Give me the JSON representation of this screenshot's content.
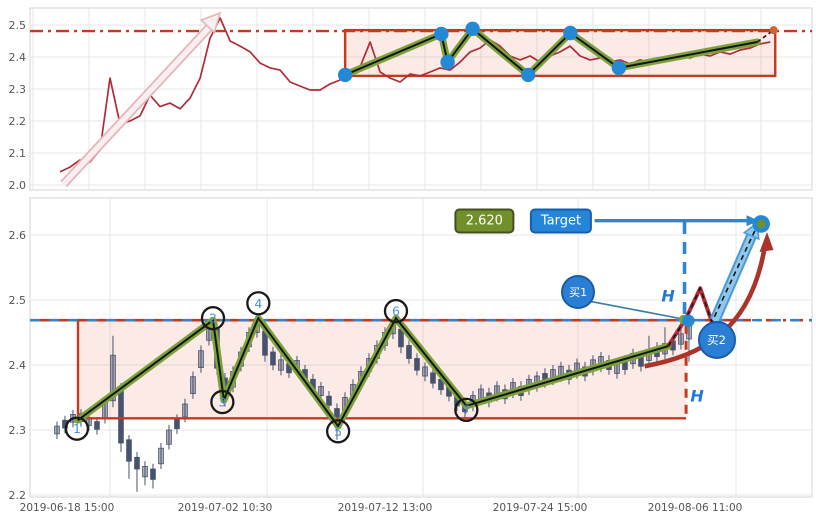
{
  "colors": {
    "grid": "#e7e7e7",
    "panel_border": "#d5d5d5",
    "axis_text": "#555555",
    "price_line": "#b02c38",
    "red": "#c5391f",
    "box_fill": "rgba(222,90,57,0.13)",
    "zigzag_green": "#7ba23c",
    "zigzag_black": "#161616",
    "pivot_blue": "#2389d5",
    "candle": "#47536e",
    "candle_up_fill": "rgba(71,83,110,0.45)",
    "orange_dot": "#d2622f",
    "arrow_pink_edge": "#e4b6ba",
    "arrow_pink_fill": "#f9eff0",
    "curve_red": "#a8342a",
    "lightblue_fill": "#8fc7ea",
    "lightblue_edge": "#4a9bd5",
    "blue_line": "#2f86d0",
    "steel_pointer": "#3a7ca8",
    "circle_stroke": "#1a1a1a",
    "circle_number": "#4a93d8",
    "olive_inner": "#70902c"
  },
  "chart_data": [
    {
      "type": "line",
      "panel": "top",
      "y_ticks": [
        {
          "p": 2.5,
          "label": "2.5"
        },
        {
          "p": 2.4,
          "label": "2.4"
        },
        {
          "p": 2.3,
          "label": "2.3"
        },
        {
          "p": 2.2,
          "label": "2.2"
        },
        {
          "p": 2.1,
          "label": "2.1"
        },
        {
          "p": 2.0,
          "label": "2.0"
        }
      ],
      "grid_t": [
        0.38,
        7.54,
        14.7,
        21.86,
        29.02,
        36.18,
        43.34,
        50.5,
        57.66,
        64.82,
        71.98,
        79.14,
        86.3,
        93.46
      ],
      "hline_p": 2.481,
      "box": {
        "t1": 40.3,
        "t2": 95.3,
        "p_top": 2.484,
        "p_bottom": 2.341
      },
      "trend_arrow": {
        "from": [
          4.3,
          2.003
        ],
        "to": [
          24.2,
          2.53
        ]
      },
      "line": {
        "t_start": 3.84,
        "t_step": 1.279,
        "prices": [
          2.041,
          2.056,
          2.078,
          2.072,
          2.109,
          2.334,
          2.191,
          2.2,
          2.216,
          2.281,
          2.245,
          2.256,
          2.238,
          2.272,
          2.334,
          2.459,
          2.522,
          2.45,
          2.434,
          2.416,
          2.381,
          2.366,
          2.359,
          2.322,
          2.309,
          2.297,
          2.297,
          2.316,
          2.328,
          2.353,
          2.369,
          2.447,
          2.353,
          2.334,
          2.322,
          2.347,
          2.341,
          2.353,
          2.366,
          2.359,
          2.384,
          2.416,
          2.428,
          2.453,
          2.434,
          2.403,
          2.391,
          2.403,
          2.384,
          2.403,
          2.416,
          2.434,
          2.403,
          2.391,
          2.397,
          2.384,
          2.391,
          2.378,
          2.391,
          2.384,
          2.397,
          2.391,
          2.403,
          2.397,
          2.409,
          2.403,
          2.416,
          2.409,
          2.422,
          2.428,
          2.441,
          2.447
        ]
      },
      "zigzag": [
        [
          40.3,
          2.344
        ],
        [
          52.6,
          2.472
        ],
        [
          53.4,
          2.384
        ],
        [
          56.6,
          2.488
        ],
        [
          63.7,
          2.344
        ],
        [
          69.1,
          2.475
        ],
        [
          75.3,
          2.366
        ],
        [
          93.0,
          2.447
        ]
      ],
      "zigzag_dash": [
        [
          93.0,
          2.447
        ],
        [
          95.1,
          2.484
        ]
      ],
      "end_dot": [
        95.1,
        2.484
      ]
    },
    {
      "type": "candlestick",
      "panel": "bottom",
      "y_ticks": [
        {
          "p": 2.6,
          "label": "2.6"
        },
        {
          "p": 2.5,
          "label": "2.5"
        },
        {
          "p": 2.4,
          "label": "2.4"
        },
        {
          "p": 2.3,
          "label": "2.3"
        },
        {
          "p": 2.2,
          "label": "2.2"
        }
      ],
      "grid_t": [
        10.23,
        30.31,
        50.26,
        70.08,
        90.28
      ],
      "x_ticks": [
        {
          "t": 4.73,
          "label": "2019-06-18 15:00"
        },
        {
          "t": 24.94,
          "label": "2019-07-02 10:30"
        },
        {
          "t": 45.4,
          "label": "2019-07-12 13:00"
        },
        {
          "t": 65.22,
          "label": "2019-07-24 15:00"
        },
        {
          "t": 85.04,
          "label": "2019-08-06 11:00"
        }
      ],
      "hline_p": 2.469,
      "box": {
        "t1": 6.14,
        "t2": 83.9,
        "p_top": 2.469,
        "p_bottom": 2.318
      },
      "candles": {
        "t_start": 3.45,
        "t_step": 1.023,
        "ohlc": [
          [
            2.294,
            2.313,
            2.286,
            2.306
          ],
          [
            2.315,
            2.322,
            2.295,
            2.303
          ],
          [
            2.312,
            2.331,
            2.304,
            2.324
          ],
          [
            2.325,
            2.332,
            2.305,
            2.313
          ],
          [
            2.307,
            2.326,
            2.299,
            2.319
          ],
          [
            2.313,
            2.32,
            2.293,
            2.301
          ],
          [
            2.318,
            2.352,
            2.31,
            2.342
          ],
          [
            2.345,
            2.445,
            2.335,
            2.415
          ],
          [
            2.36,
            2.372,
            2.266,
            2.28
          ],
          [
            2.285,
            2.292,
            2.225,
            2.252
          ],
          [
            2.258,
            2.266,
            2.205,
            2.24
          ],
          [
            2.228,
            2.252,
            2.215,
            2.244
          ],
          [
            2.24,
            2.248,
            2.21,
            2.224
          ],
          [
            2.248,
            2.28,
            2.24,
            2.272
          ],
          [
            2.278,
            2.308,
            2.27,
            2.3
          ],
          [
            2.316,
            2.324,
            2.294,
            2.302
          ],
          [
            2.32,
            2.348,
            2.312,
            2.34
          ],
          [
            2.356,
            2.39,
            2.348,
            2.382
          ],
          [
            2.396,
            2.43,
            2.388,
            2.422
          ],
          [
            2.438,
            2.468,
            2.43,
            2.46
          ],
          [
            2.455,
            2.465,
            2.385,
            2.395
          ],
          [
            2.38,
            2.388,
            2.336,
            2.352
          ],
          [
            2.366,
            2.398,
            2.358,
            2.39
          ],
          [
            2.398,
            2.428,
            2.39,
            2.42
          ],
          [
            2.428,
            2.458,
            2.42,
            2.45
          ],
          [
            2.45,
            2.47,
            2.442,
            2.464
          ],
          [
            2.452,
            2.46,
            2.405,
            2.415
          ],
          [
            2.42,
            2.428,
            2.392,
            2.4
          ],
          [
            2.392,
            2.416,
            2.384,
            2.408
          ],
          [
            2.402,
            2.41,
            2.38,
            2.388
          ],
          [
            2.393,
            2.414,
            2.385,
            2.407
          ],
          [
            2.393,
            2.4,
            2.369,
            2.377
          ],
          [
            2.378,
            2.386,
            2.354,
            2.362
          ],
          [
            2.353,
            2.374,
            2.345,
            2.367
          ],
          [
            2.352,
            2.36,
            2.33,
            2.338
          ],
          [
            2.333,
            2.341,
            2.285,
            2.317
          ],
          [
            2.33,
            2.358,
            2.322,
            2.35
          ],
          [
            2.35,
            2.378,
            2.342,
            2.37
          ],
          [
            2.37,
            2.398,
            2.362,
            2.39
          ],
          [
            2.39,
            2.418,
            2.382,
            2.41
          ],
          [
            2.41,
            2.438,
            2.402,
            2.43
          ],
          [
            2.43,
            2.458,
            2.422,
            2.45
          ],
          [
            2.448,
            2.468,
            2.44,
            2.462
          ],
          [
            2.455,
            2.462,
            2.418,
            2.428
          ],
          [
            2.43,
            2.438,
            2.402,
            2.41
          ],
          [
            2.41,
            2.418,
            2.384,
            2.392
          ],
          [
            2.383,
            2.404,
            2.375,
            2.397
          ],
          [
            2.388,
            2.396,
            2.364,
            2.372
          ],
          [
            2.378,
            2.386,
            2.354,
            2.362
          ],
          [
            2.368,
            2.376,
            2.344,
            2.352
          ],
          [
            2.353,
            2.361,
            2.329,
            2.337
          ],
          [
            2.342,
            2.35,
            2.318,
            2.328
          ],
          [
            2.337,
            2.36,
            2.329,
            2.353
          ],
          [
            2.347,
            2.37,
            2.339,
            2.363
          ],
          [
            2.357,
            2.365,
            2.335,
            2.343
          ],
          [
            2.352,
            2.375,
            2.344,
            2.368
          ],
          [
            2.362,
            2.37,
            2.34,
            2.348
          ],
          [
            2.357,
            2.38,
            2.349,
            2.373
          ],
          [
            2.367,
            2.375,
            2.345,
            2.353
          ],
          [
            2.362,
            2.385,
            2.354,
            2.378
          ],
          [
            2.367,
            2.39,
            2.359,
            2.383
          ],
          [
            2.387,
            2.395,
            2.365,
            2.373
          ],
          [
            2.377,
            2.4,
            2.369,
            2.393
          ],
          [
            2.382,
            2.405,
            2.374,
            2.398
          ],
          [
            2.392,
            2.4,
            2.37,
            2.378
          ],
          [
            2.387,
            2.41,
            2.379,
            2.403
          ],
          [
            2.397,
            2.405,
            2.375,
            2.383
          ],
          [
            2.392,
            2.415,
            2.384,
            2.408
          ],
          [
            2.397,
            2.42,
            2.389,
            2.413
          ],
          [
            2.407,
            2.415,
            2.385,
            2.393
          ],
          [
            2.387,
            2.41,
            2.379,
            2.403
          ],
          [
            2.407,
            2.415,
            2.385,
            2.393
          ],
          [
            2.402,
            2.425,
            2.394,
            2.418
          ],
          [
            2.412,
            2.42,
            2.39,
            2.398
          ],
          [
            2.407,
            2.445,
            2.399,
            2.423
          ],
          [
            2.427,
            2.435,
            2.405,
            2.413
          ],
          [
            2.417,
            2.458,
            2.409,
            2.433
          ],
          [
            2.437,
            2.445,
            2.415,
            2.423
          ],
          [
            2.432,
            2.455,
            2.424,
            2.448
          ],
          [
            2.44,
            2.469,
            2.405,
            2.462
          ]
        ]
      },
      "zigzag": [
        [
          6.1,
          2.315
        ],
        [
          23.4,
          2.469
        ],
        [
          24.8,
          2.346
        ],
        [
          29.2,
          2.472
        ],
        [
          39.4,
          2.306
        ],
        [
          46.8,
          2.472
        ],
        [
          55.8,
          2.337
        ],
        [
          81.6,
          2.429
        ]
      ],
      "projection_dash": [
        [
          81.6,
          2.429
        ],
        [
          83.9,
          2.472
        ],
        [
          85.7,
          2.518
        ],
        [
          87.2,
          2.466
        ],
        [
          92.9,
          2.612
        ]
      ],
      "price_line": [
        [
          81.6,
          2.429
        ],
        [
          83.9,
          2.472
        ],
        [
          85.7,
          2.518
        ],
        [
          87.2,
          2.466
        ],
        [
          88.4,
          2.503
        ]
      ],
      "pivot_circles": [
        {
          "label": "1",
          "t": 6.0,
          "p": 2.302
        },
        {
          "label": "2",
          "t": 23.4,
          "p": 2.472
        },
        {
          "label": "3",
          "t": 24.6,
          "p": 2.343
        },
        {
          "label": "4",
          "t": 29.2,
          "p": 2.495
        },
        {
          "label": "5",
          "t": 39.4,
          "p": 2.298
        },
        {
          "label": "6",
          "t": 46.8,
          "p": 2.483
        },
        {
          "label": "7",
          "t": 55.8,
          "p": 2.331
        }
      ]
    }
  ],
  "annotations": {
    "value_badge": {
      "label": "2.620",
      "t": 58.1,
      "p": 2.622
    },
    "target_badge": {
      "label": "Target",
      "t": 67.9,
      "p": 2.622
    },
    "buy1": {
      "label": "买1",
      "t": 70.1,
      "p": 2.512,
      "pointer_from": [
        71.6,
        2.498
      ],
      "pointer_to": [
        83.4,
        2.471
      ]
    },
    "buy2": {
      "label": "买2",
      "t": 87.8,
      "p": 2.438
    },
    "h_upper": {
      "label": "H",
      "t": 81.6,
      "p": 2.506
    },
    "h_lower": {
      "label": "H",
      "t": 85.3,
      "p": 2.352
    },
    "target_arrow": {
      "from_t": 72.2,
      "to_t": 92.4,
      "p": 2.622
    },
    "v_dash_blue": {
      "t": 83.7,
      "p1": 2.62,
      "p2": 2.47
    },
    "v_dash_red": {
      "t": 83.9,
      "p1": 2.462,
      "p2": 2.318
    },
    "green_point": {
      "t": 83.6,
      "p": 2.47
    },
    "buy_point": {
      "t": 84.2,
      "p": 2.468
    },
    "target_point": {
      "t": 93.5,
      "p": 2.617
    },
    "curve_arrow": {
      "pts": [
        [
          78.6,
          2.398
        ],
        [
          85.8,
          2.415
        ],
        [
          92.2,
          2.45
        ],
        [
          94.0,
          2.585
        ]
      ]
    },
    "blue_arrow": {
      "from": [
        87.7,
        2.472
      ],
      "to": [
        92.5,
        2.605
      ]
    }
  }
}
